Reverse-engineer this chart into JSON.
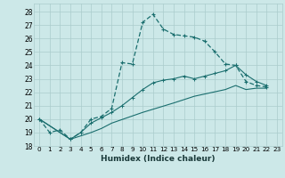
{
  "title": "",
  "xlabel": "Humidex (Indice chaleur)",
  "background_color": "#cce8e8",
  "grid_color": "#aacccc",
  "line_color": "#1a6e6e",
  "xlim": [
    -0.5,
    23.5
  ],
  "ylim": [
    18,
    28.6
  ],
  "xticks": [
    0,
    1,
    2,
    3,
    4,
    5,
    6,
    7,
    8,
    9,
    10,
    11,
    12,
    13,
    14,
    15,
    16,
    17,
    18,
    19,
    20,
    21,
    22,
    23
  ],
  "yticks": [
    18,
    19,
    20,
    21,
    22,
    23,
    24,
    25,
    26,
    27,
    28
  ],
  "series1": [
    [
      0,
      20
    ],
    [
      1,
      19
    ],
    [
      2,
      19.2
    ],
    [
      3,
      18.5
    ],
    [
      4,
      19
    ],
    [
      5,
      20
    ],
    [
      6,
      20.2
    ],
    [
      7,
      20.8
    ],
    [
      8,
      24.2
    ],
    [
      9,
      24.1
    ],
    [
      10,
      27.2
    ],
    [
      11,
      27.8
    ],
    [
      12,
      26.7
    ],
    [
      13,
      26.3
    ],
    [
      14,
      26.2
    ],
    [
      15,
      26.1
    ],
    [
      16,
      25.8
    ],
    [
      17,
      25.0
    ],
    [
      18,
      24.1
    ],
    [
      19,
      24.0
    ],
    [
      20,
      22.8
    ],
    [
      21,
      22.5
    ],
    [
      22,
      22.4
    ]
  ],
  "series2": [
    [
      0,
      20
    ],
    [
      3,
      18.5
    ],
    [
      4,
      19.0
    ],
    [
      5,
      19.7
    ],
    [
      6,
      20.1
    ],
    [
      7,
      20.5
    ],
    [
      8,
      21.0
    ],
    [
      9,
      21.6
    ],
    [
      10,
      22.2
    ],
    [
      11,
      22.7
    ],
    [
      12,
      22.9
    ],
    [
      13,
      23.0
    ],
    [
      14,
      23.2
    ],
    [
      15,
      23.0
    ],
    [
      16,
      23.2
    ],
    [
      17,
      23.4
    ],
    [
      18,
      23.6
    ],
    [
      19,
      24.0
    ],
    [
      20,
      23.3
    ],
    [
      21,
      22.8
    ],
    [
      22,
      22.5
    ]
  ],
  "series3": [
    [
      0,
      20
    ],
    [
      3,
      18.5
    ],
    [
      5,
      19.0
    ],
    [
      6,
      19.3
    ],
    [
      7,
      19.7
    ],
    [
      10,
      20.5
    ],
    [
      13,
      21.2
    ],
    [
      15,
      21.7
    ],
    [
      18,
      22.2
    ],
    [
      19,
      22.5
    ],
    [
      20,
      22.2
    ],
    [
      21,
      22.3
    ],
    [
      22,
      22.3
    ]
  ]
}
